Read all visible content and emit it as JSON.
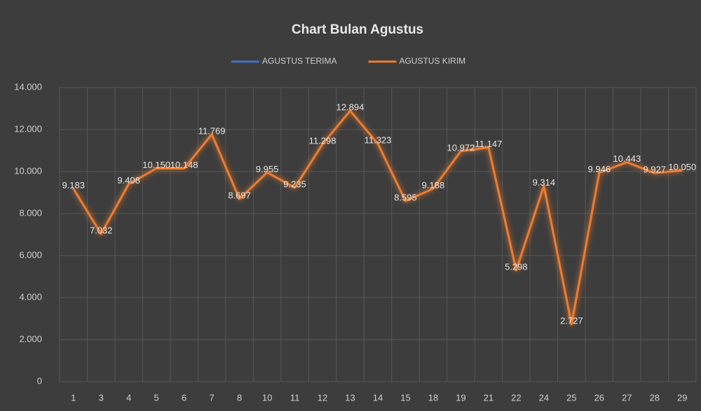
{
  "chart_data": {
    "type": "line",
    "title": "Chart Bulan Agustus",
    "categories": [
      "1",
      "3",
      "4",
      "5",
      "6",
      "7",
      "8",
      "10",
      "11",
      "12",
      "13",
      "14",
      "15",
      "18",
      "19",
      "21",
      "22",
      "24",
      "25",
      "26",
      "27",
      "28",
      "29"
    ],
    "series": [
      {
        "name": "AGUSTUS TERIMA",
        "color": "#4472c4",
        "values": [
          null,
          null,
          null,
          null,
          null,
          null,
          null,
          null,
          null,
          null,
          null,
          null,
          null,
          null,
          null,
          null,
          null,
          null,
          null,
          null,
          null,
          null,
          null
        ]
      },
      {
        "name": "AGUSTUS KIRIM",
        "color": "#ed7d31",
        "values": [
          9183,
          7032,
          9408,
          10150,
          10148,
          11769,
          8697,
          9955,
          9235,
          11298,
          12894,
          11323,
          8595,
          9188,
          10972,
          11147,
          5298,
          9314,
          2727,
          9946,
          10443,
          9927,
          10050
        ],
        "value_labels": [
          "9.183",
          "7.032",
          "9.408",
          "10.150",
          "10.148",
          "11.769",
          "8.697",
          "9.955",
          "9.235",
          "11.298",
          "12.894",
          "11.323",
          "8.595",
          "9.188",
          "10.972",
          "11.147",
          "5.298",
          "9.314",
          "2.727",
          "9.946",
          "10.443",
          "9.927",
          "10.050"
        ]
      }
    ],
    "ylim": [
      0,
      14000
    ],
    "yticks": [
      0,
      {
        "value": 2000,
        "label": "2.000"
      },
      {
        "value": 4000,
        "label": "4.000"
      },
      {
        "value": 6000,
        "label": "6.000"
      },
      {
        "value": 8000,
        "label": "8.000"
      },
      {
        "value": 10000,
        "label": "10.000"
      },
      {
        "value": 12000,
        "label": "12.000"
      },
      {
        "value": 14000,
        "label": "14.000"
      }
    ],
    "grid": true,
    "legend": "top"
  }
}
